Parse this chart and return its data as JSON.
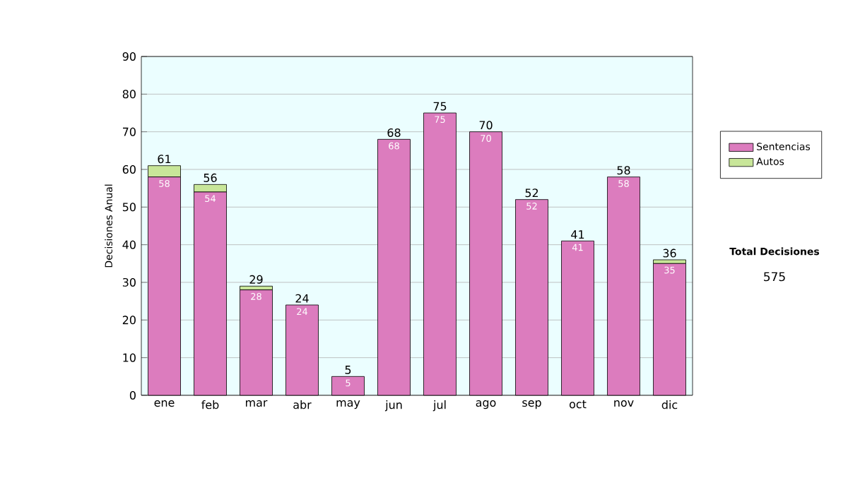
{
  "chart_data": {
    "type": "bar",
    "stacked": true,
    "ylabel": "Decisiones Anual",
    "categories": [
      "ene",
      "feb",
      "mar",
      "abr",
      "may",
      "jun",
      "jul",
      "ago",
      "sep",
      "oct",
      "nov",
      "dic"
    ],
    "series": [
      {
        "name": "Sentencias",
        "color": "#dc7cbe",
        "values": [
          58,
          54,
          28,
          24,
          5,
          68,
          75,
          70,
          52,
          41,
          58,
          35
        ],
        "value_labels": [
          "58",
          "54",
          "28",
          "24",
          "5",
          "68",
          "75",
          "70",
          "52",
          "41",
          "58",
          "35"
        ]
      },
      {
        "name": "Autos",
        "color": "#c8e699",
        "values": [
          3,
          2,
          1,
          0,
          0,
          0,
          0,
          0,
          0,
          0,
          0,
          1
        ]
      }
    ],
    "totals": [
      "61",
      "56",
      "29",
      "24",
      "5",
      "68",
      "75",
      "70",
      "52",
      "41",
      "58",
      "36"
    ],
    "ylim": [
      0,
      90
    ],
    "yticks": [
      0,
      10,
      20,
      30,
      40,
      50,
      60,
      70,
      80,
      90
    ],
    "grid": "y",
    "legend": "right",
    "annotations": [
      "Total Decisiones",
      "575"
    ]
  }
}
